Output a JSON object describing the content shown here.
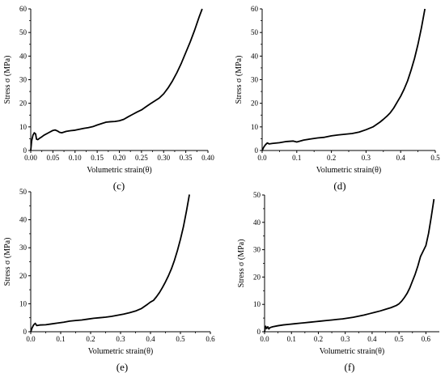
{
  "chart_data": [
    {
      "type": "line",
      "panel_label": "(c)",
      "xlabel": "Volumetric strain(θ)",
      "ylabel": "Stress σ (MPa)",
      "xlim": [
        0,
        0.4
      ],
      "ylim": [
        0,
        60
      ],
      "xticks": [
        0.0,
        0.05,
        0.1,
        0.15,
        0.2,
        0.25,
        0.3,
        0.35,
        0.4
      ],
      "xtick_labels": [
        "0.00",
        "0.05",
        "0.10",
        "0.15",
        "0.20",
        "0.25",
        "0.30",
        "0.35",
        "0.40"
      ],
      "yticks": [
        0,
        10,
        20,
        30,
        40,
        50,
        60
      ],
      "ytick_labels": [
        "0",
        "10",
        "20",
        "30",
        "40",
        "50",
        "60"
      ],
      "grid": false,
      "series": [
        {
          "x": [
            0,
            0.002,
            0.005,
            0.008,
            0.011,
            0.013,
            0.016,
            0.02,
            0.025,
            0.03,
            0.04,
            0.05,
            0.055,
            0.06,
            0.065,
            0.07,
            0.08,
            0.09,
            0.1,
            0.11,
            0.12,
            0.13,
            0.14,
            0.15,
            0.16,
            0.17,
            0.18,
            0.19,
            0.2,
            0.21,
            0.22,
            0.23,
            0.24,
            0.25,
            0.26,
            0.27,
            0.28,
            0.29,
            0.3,
            0.31,
            0.32,
            0.33,
            0.34,
            0.35,
            0.36,
            0.37,
            0.38,
            0.387
          ],
          "y": [
            0,
            4.0,
            6.5,
            7.5,
            7.0,
            4.8,
            4.6,
            5.2,
            5.8,
            6.5,
            7.5,
            8.5,
            8.7,
            8.3,
            7.7,
            7.5,
            8.1,
            8.4,
            8.6,
            9.0,
            9.4,
            9.7,
            10.1,
            10.8,
            11.4,
            12.0,
            12.2,
            12.3,
            12.6,
            13.2,
            14.3,
            15.3,
            16.3,
            17.2,
            18.5,
            19.8,
            21.0,
            22.2,
            24.0,
            26.5,
            29.5,
            33.0,
            37.0,
            41.5,
            46.0,
            51.0,
            56.5,
            60.0
          ]
        }
      ]
    },
    {
      "type": "line",
      "panel_label": "(d)",
      "xlabel": "Volumetric strain(θ)",
      "ylabel": "Stress σ (MPa)",
      "xlim": [
        0,
        0.5
      ],
      "ylim": [
        0,
        60
      ],
      "xticks": [
        0.0,
        0.1,
        0.2,
        0.3,
        0.4,
        0.5
      ],
      "xtick_labels": [
        "0.0",
        "0.1",
        "0.2",
        "0.3",
        "0.4",
        "0.5"
      ],
      "yticks": [
        0,
        10,
        20,
        30,
        40,
        50,
        60
      ],
      "ytick_labels": [
        "0",
        "10",
        "20",
        "30",
        "40",
        "50",
        "60"
      ],
      "grid": false,
      "series": [
        {
          "x": [
            0,
            0.005,
            0.01,
            0.015,
            0.02,
            0.03,
            0.05,
            0.07,
            0.09,
            0.1,
            0.12,
            0.14,
            0.16,
            0.18,
            0.2,
            0.22,
            0.24,
            0.26,
            0.28,
            0.3,
            0.32,
            0.34,
            0.35,
            0.36,
            0.37,
            0.38,
            0.39,
            0.4,
            0.41,
            0.42,
            0.43,
            0.44,
            0.45,
            0.46,
            0.47
          ],
          "y": [
            0,
            1.5,
            2.5,
            3.2,
            2.8,
            3.0,
            3.3,
            3.8,
            4.0,
            3.6,
            4.4,
            4.9,
            5.3,
            5.6,
            6.2,
            6.6,
            6.9,
            7.2,
            7.8,
            8.8,
            10.0,
            12.0,
            13.2,
            14.5,
            16.0,
            18.0,
            20.5,
            23.0,
            26.0,
            29.5,
            34.0,
            39.0,
            45.0,
            52.0,
            60.0
          ]
        }
      ]
    },
    {
      "type": "line",
      "panel_label": "(e)",
      "xlabel": "Volumetric strain(θ)",
      "ylabel": "Stress σ (MPa)",
      "xlim": [
        0,
        0.6
      ],
      "ylim": [
        0,
        50
      ],
      "xticks": [
        0.0,
        0.1,
        0.2,
        0.3,
        0.4,
        0.5,
        0.6
      ],
      "xtick_labels": [
        "0.0",
        "0.1",
        "0.2",
        "0.3",
        "0.4",
        "0.5",
        "0.6"
      ],
      "yticks": [
        0,
        10,
        20,
        30,
        40,
        50
      ],
      "ytick_labels": [
        "0",
        "10",
        "20",
        "30",
        "40",
        "50"
      ],
      "grid": false,
      "series": [
        {
          "x": [
            0,
            0.005,
            0.01,
            0.015,
            0.02,
            0.03,
            0.05,
            0.07,
            0.09,
            0.11,
            0.13,
            0.15,
            0.17,
            0.19,
            0.21,
            0.23,
            0.25,
            0.27,
            0.29,
            0.31,
            0.33,
            0.35,
            0.37,
            0.39,
            0.4,
            0.41,
            0.42,
            0.43,
            0.44,
            0.45,
            0.46,
            0.47,
            0.48,
            0.49,
            0.5,
            0.51,
            0.52,
            0.53
          ],
          "y": [
            0,
            1.5,
            2.5,
            3.0,
            2.2,
            2.4,
            2.5,
            2.8,
            3.1,
            3.4,
            3.8,
            4.0,
            4.2,
            4.5,
            4.8,
            5.0,
            5.2,
            5.5,
            5.9,
            6.3,
            6.8,
            7.4,
            8.3,
            9.8,
            10.6,
            11.2,
            12.5,
            14.0,
            15.8,
            17.8,
            20.0,
            22.5,
            25.5,
            29.0,
            33.0,
            37.5,
            43.0,
            49.0
          ]
        }
      ]
    },
    {
      "type": "line",
      "panel_label": "(f)",
      "xlabel": "Volumetric strain(θ)",
      "ylabel": "Stress σ (MPa)",
      "xlim": [
        0,
        0.65
      ],
      "ylim": [
        0,
        50
      ],
      "xticks": [
        0.0,
        0.1,
        0.2,
        0.3,
        0.4,
        0.5,
        0.6
      ],
      "xtick_labels": [
        "0.0",
        "0.1",
        "0.2",
        "0.3",
        "0.4",
        "0.5",
        "0.6"
      ],
      "yticks": [
        0,
        10,
        20,
        30,
        40,
        50
      ],
      "ytick_labels": [
        "0",
        "10",
        "20",
        "30",
        "40",
        "50"
      ],
      "grid": false,
      "series": [
        {
          "x": [
            0,
            0.004,
            0.008,
            0.012,
            0.016,
            0.02,
            0.03,
            0.05,
            0.07,
            0.09,
            0.11,
            0.13,
            0.15,
            0.17,
            0.19,
            0.21,
            0.23,
            0.25,
            0.27,
            0.29,
            0.31,
            0.33,
            0.35,
            0.37,
            0.39,
            0.41,
            0.43,
            0.45,
            0.47,
            0.49,
            0.5,
            0.51,
            0.52,
            0.53,
            0.54,
            0.55,
            0.56,
            0.57,
            0.58,
            0.59,
            0.6,
            0.61,
            0.62,
            0.63
          ],
          "y": [
            0,
            2.0,
            1.2,
            1.8,
            1.0,
            1.5,
            1.8,
            2.2,
            2.5,
            2.7,
            2.9,
            3.1,
            3.3,
            3.5,
            3.7,
            3.9,
            4.1,
            4.3,
            4.5,
            4.7,
            5.0,
            5.3,
            5.7,
            6.1,
            6.6,
            7.1,
            7.6,
            8.2,
            8.8,
            9.6,
            10.2,
            11.2,
            12.5,
            14.0,
            16.0,
            18.5,
            21.0,
            24.0,
            27.5,
            29.5,
            31.5,
            36.0,
            42.0,
            48.5
          ]
        }
      ]
    }
  ]
}
